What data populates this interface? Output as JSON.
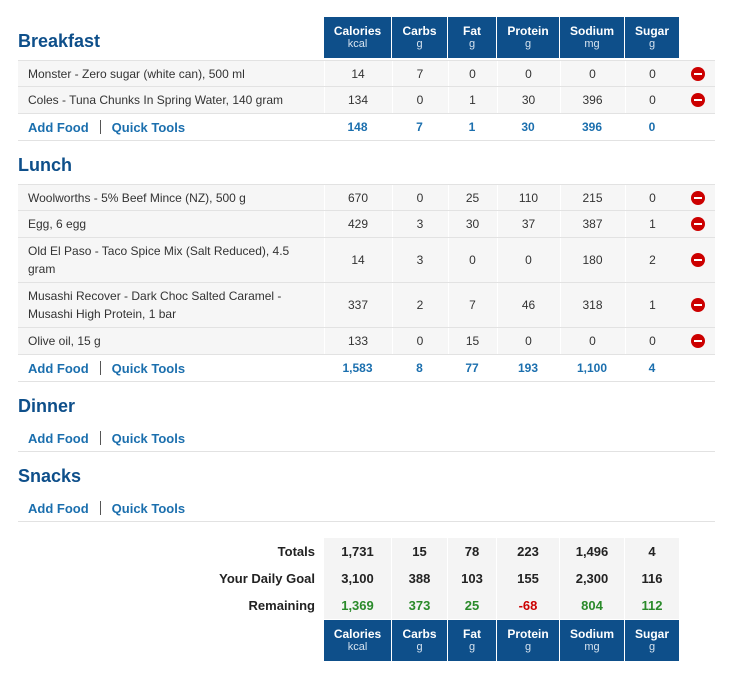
{
  "columns": [
    {
      "name": "Calories",
      "unit": "kcal"
    },
    {
      "name": "Carbs",
      "unit": "g"
    },
    {
      "name": "Fat",
      "unit": "g"
    },
    {
      "name": "Protein",
      "unit": "g"
    },
    {
      "name": "Sodium",
      "unit": "mg"
    },
    {
      "name": "Sugar",
      "unit": "g"
    }
  ],
  "actions": {
    "add_food": "Add Food",
    "quick_tools": "Quick Tools"
  },
  "meals": [
    {
      "title": "Breakfast",
      "items": [
        {
          "name": "Monster - Zero sugar (white can), 500 ml",
          "values": [
            "14",
            "7",
            "0",
            "0",
            "0",
            "0"
          ]
        },
        {
          "name": "Coles - Tuna Chunks In Spring Water, 140 gram",
          "values": [
            "134",
            "0",
            "1",
            "30",
            "396",
            "0"
          ]
        }
      ],
      "totals": [
        "148",
        "7",
        "1",
        "30",
        "396",
        "0"
      ]
    },
    {
      "title": "Lunch",
      "items": [
        {
          "name": "Woolworths - 5% Beef Mince (NZ), 500 g",
          "values": [
            "670",
            "0",
            "25",
            "110",
            "215",
            "0"
          ]
        },
        {
          "name": "Egg, 6 egg",
          "values": [
            "429",
            "3",
            "30",
            "37",
            "387",
            "1"
          ]
        },
        {
          "name": "Old El Paso - Taco Spice Mix (Salt Reduced), 4.5 gram",
          "values": [
            "14",
            "3",
            "0",
            "0",
            "180",
            "2"
          ]
        },
        {
          "name": "Musashi Recover - Dark Choc Salted Caramel - Musashi High Protein, 1 bar",
          "values": [
            "337",
            "2",
            "7",
            "46",
            "318",
            "1"
          ]
        },
        {
          "name": "Olive oil, 15 g",
          "values": [
            "133",
            "0",
            "15",
            "0",
            "0",
            "0"
          ]
        }
      ],
      "totals": [
        "1,583",
        "8",
        "77",
        "193",
        "1,100",
        "4"
      ]
    },
    {
      "title": "Dinner",
      "items": [],
      "totals": []
    },
    {
      "title": "Snacks",
      "items": [],
      "totals": []
    }
  ],
  "summary": {
    "totals_label": "Totals",
    "totals": [
      "1,731",
      "15",
      "78",
      "223",
      "1,496",
      "4"
    ],
    "goal_label": "Your Daily Goal",
    "goal": [
      "3,100",
      "388",
      "103",
      "155",
      "2,300",
      "116"
    ],
    "remaining_label": "Remaining",
    "remaining": [
      "1,369",
      "373",
      "25",
      "-68",
      "804",
      "112"
    ]
  },
  "colors": {
    "header": "#0e4f8a",
    "link": "#1b6fae",
    "positive": "#2a8a2a",
    "negative": "#cc0000"
  }
}
